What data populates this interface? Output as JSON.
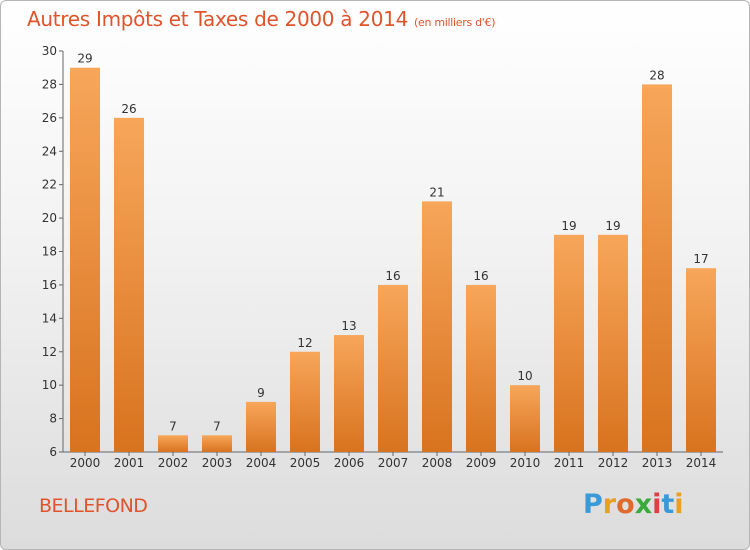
{
  "title": "Autres Impôts et Taxes de 2000 à 2014",
  "subtitle": "(en milliers d'€)",
  "town": "BELLEFOND",
  "logo": {
    "letters": [
      "P",
      "r",
      "o",
      "x",
      "i",
      "t",
      "i"
    ],
    "colors": [
      "#3a9ad9",
      "#e8a020",
      "#e06a2c",
      "#3aaa3a",
      "#e04040",
      "#3a9ad9",
      "#e8a020"
    ]
  },
  "colors": {
    "bar_top": "#f7a65a",
    "bar_bottom": "#d8731f",
    "title": "#e0542c"
  },
  "chart_data": {
    "type": "bar",
    "title": "Autres Impôts et Taxes de 2000 à 2014",
    "subtitle": "(en milliers d'€)",
    "categories": [
      "2000",
      "2001",
      "2002",
      "2003",
      "2004",
      "2005",
      "2006",
      "2007",
      "2008",
      "2009",
      "2010",
      "2011",
      "2012",
      "2013",
      "2014"
    ],
    "values": [
      29,
      26,
      7,
      7,
      9,
      12,
      13,
      16,
      21,
      16,
      10,
      19,
      19,
      28,
      17
    ],
    "ylim": [
      6,
      30
    ],
    "yticks": [
      6,
      8,
      10,
      12,
      14,
      16,
      18,
      20,
      22,
      24,
      26,
      28,
      30
    ],
    "grid": false,
    "legend": "none"
  }
}
